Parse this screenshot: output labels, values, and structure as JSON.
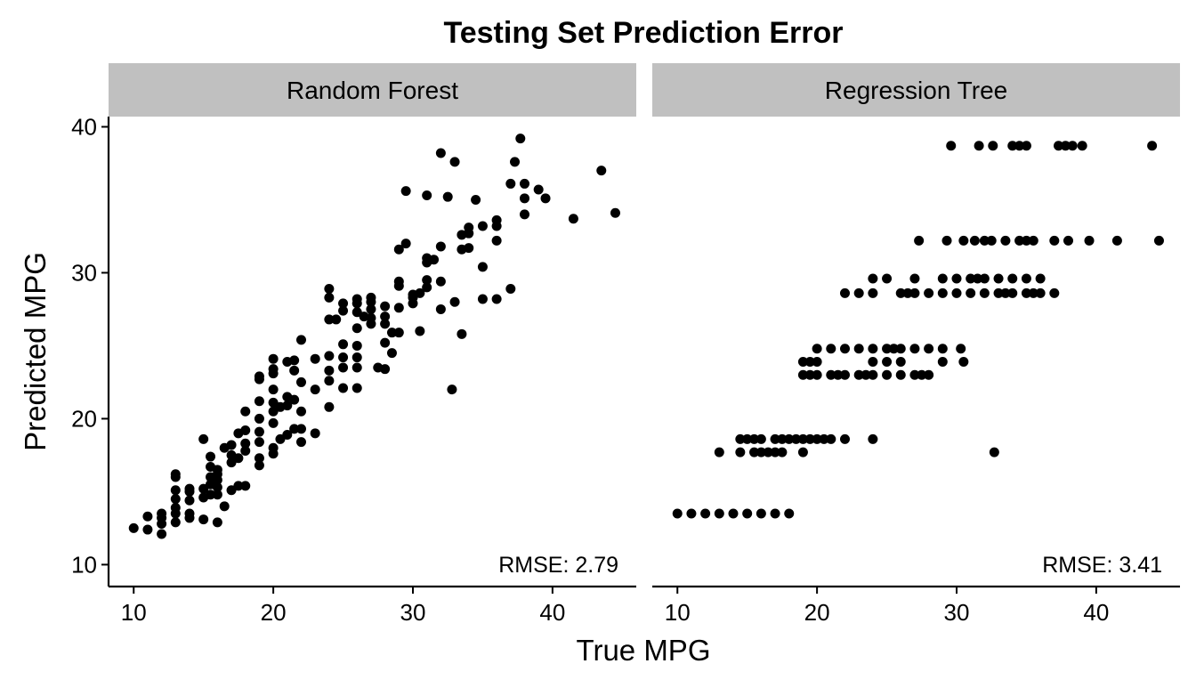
{
  "chart_data": {
    "type": "scatter",
    "title": "Testing Set Prediction Error",
    "xlabel": "True MPG",
    "ylabel": "Predicted MPG",
    "xlim": [
      8.2,
      46
    ],
    "ylim": [
      8.5,
      40.7
    ],
    "x_ticks": [
      "10",
      "20",
      "30",
      "40"
    ],
    "y_ticks": [
      "10",
      "20",
      "30",
      "40"
    ],
    "grid": false,
    "legend": "none",
    "point_color": "#000000",
    "strip_color": "#c0c0c0",
    "panels": [
      {
        "name": "Random Forest",
        "annotation": "RMSE: 2.79",
        "points": [
          [
            10,
            12.5
          ],
          [
            11,
            12.4
          ],
          [
            11,
            13.3
          ],
          [
            12,
            12.1
          ],
          [
            12,
            13.5
          ],
          [
            12,
            13.2
          ],
          [
            12,
            12.8
          ],
          [
            13,
            12.9
          ],
          [
            13,
            13.5
          ],
          [
            13,
            13.9
          ],
          [
            13,
            14.5
          ],
          [
            13,
            15.1
          ],
          [
            13,
            16.0
          ],
          [
            13,
            16.2
          ],
          [
            14,
            13.2
          ],
          [
            14,
            13.5
          ],
          [
            14,
            14.4
          ],
          [
            14,
            15.0
          ],
          [
            14,
            15.2
          ],
          [
            15,
            13.1
          ],
          [
            15,
            14.6
          ],
          [
            15,
            15.2
          ],
          [
            15,
            18.6
          ],
          [
            15.5,
            14.8
          ],
          [
            15.5,
            15.5
          ],
          [
            15.5,
            16.0
          ],
          [
            15.5,
            16.7
          ],
          [
            15.5,
            17.4
          ],
          [
            16,
            12.9
          ],
          [
            16,
            14.8
          ],
          [
            16,
            15.3
          ],
          [
            16,
            15.8
          ],
          [
            16,
            16.2
          ],
          [
            16,
            16.5
          ],
          [
            16.5,
            14.0
          ],
          [
            16.5,
            18.0
          ],
          [
            17,
            15.1
          ],
          [
            17,
            17.0
          ],
          [
            17,
            17.5
          ],
          [
            17,
            18.2
          ],
          [
            17.5,
            15.4
          ],
          [
            17.5,
            17.3
          ],
          [
            17.5,
            19.0
          ],
          [
            18,
            15.4
          ],
          [
            18,
            17.8
          ],
          [
            18,
            18.3
          ],
          [
            18,
            19.2
          ],
          [
            18,
            20.5
          ],
          [
            19,
            16.8
          ],
          [
            19,
            17.3
          ],
          [
            19,
            18.4
          ],
          [
            19,
            19.1
          ],
          [
            19,
            20.0
          ],
          [
            19,
            21.2
          ],
          [
            19,
            22.7
          ],
          [
            19,
            22.9
          ],
          [
            20,
            17.6
          ],
          [
            20,
            18.0
          ],
          [
            20,
            19.7
          ],
          [
            20,
            20.5
          ],
          [
            20,
            21.1
          ],
          [
            20,
            22.0
          ],
          [
            20,
            23.1
          ],
          [
            20,
            23.4
          ],
          [
            20,
            24.1
          ],
          [
            20.5,
            18.6
          ],
          [
            20.5,
            20.8
          ],
          [
            21,
            18.9
          ],
          [
            21,
            20.9
          ],
          [
            21,
            21.5
          ],
          [
            21,
            23.9
          ],
          [
            21.5,
            19.3
          ],
          [
            21.5,
            21.3
          ],
          [
            21.5,
            23.3
          ],
          [
            21.5,
            24.0
          ],
          [
            22,
            18.4
          ],
          [
            22,
            19.3
          ],
          [
            22,
            20.5
          ],
          [
            22,
            22.5
          ],
          [
            22,
            25.4
          ],
          [
            23,
            19.0
          ],
          [
            23,
            22.0
          ],
          [
            23,
            24.1
          ],
          [
            24,
            20.8
          ],
          [
            24,
            22.6
          ],
          [
            24,
            23.3
          ],
          [
            24,
            24.3
          ],
          [
            24,
            26.8
          ],
          [
            24,
            28.3
          ],
          [
            24,
            28.9
          ],
          [
            24.5,
            26.8
          ],
          [
            25,
            22.1
          ],
          [
            25,
            23.5
          ],
          [
            25,
            24.2
          ],
          [
            25,
            25.1
          ],
          [
            25,
            27.4
          ],
          [
            25,
            27.9
          ],
          [
            26,
            22.1
          ],
          [
            26,
            23.5
          ],
          [
            26,
            24.2
          ],
          [
            26,
            25.0
          ],
          [
            26,
            26.2
          ],
          [
            26,
            27.3
          ],
          [
            26,
            27.9
          ],
          [
            26,
            28.2
          ],
          [
            26.5,
            27.0
          ],
          [
            27,
            26.5
          ],
          [
            27,
            26.9
          ],
          [
            27,
            27.5
          ],
          [
            27,
            28.0
          ],
          [
            27,
            28.3
          ],
          [
            27.5,
            23.5
          ],
          [
            28,
            23.4
          ],
          [
            28,
            25.2
          ],
          [
            28,
            26.5
          ],
          [
            28,
            27.0
          ],
          [
            28,
            27.7
          ],
          [
            28.5,
            24.5
          ],
          [
            28.5,
            25.9
          ],
          [
            29,
            25.9
          ],
          [
            29,
            27.6
          ],
          [
            29,
            29.1
          ],
          [
            29,
            29.4
          ],
          [
            29,
            31.6
          ],
          [
            29.5,
            32.0
          ],
          [
            29.5,
            35.6
          ],
          [
            30,
            27.9
          ],
          [
            30,
            28.3
          ],
          [
            30,
            28.5
          ],
          [
            30.5,
            26.0
          ],
          [
            30.5,
            28.6
          ],
          [
            31,
            29.0
          ],
          [
            31,
            29.5
          ],
          [
            31,
            30.7
          ],
          [
            31,
            31.0
          ],
          [
            31,
            35.3
          ],
          [
            31.5,
            30.9
          ],
          [
            32,
            27.5
          ],
          [
            32,
            29.4
          ],
          [
            32,
            31.8
          ],
          [
            32,
            38.2
          ],
          [
            32.5,
            35.2
          ],
          [
            32.8,
            22.0
          ],
          [
            33,
            28.0
          ],
          [
            33,
            37.6
          ],
          [
            33.5,
            25.8
          ],
          [
            33.5,
            31.6
          ],
          [
            33.5,
            32.6
          ],
          [
            34,
            31.7
          ],
          [
            34,
            32.7
          ],
          [
            34,
            33.1
          ],
          [
            34.5,
            35.0
          ],
          [
            35,
            28.2
          ],
          [
            35,
            30.4
          ],
          [
            35,
            33.2
          ],
          [
            36,
            28.2
          ],
          [
            36,
            32.2
          ],
          [
            36,
            33.2
          ],
          [
            36,
            33.6
          ],
          [
            37,
            28.9
          ],
          [
            37,
            36.1
          ],
          [
            37.3,
            37.6
          ],
          [
            37.7,
            39.2
          ],
          [
            38,
            34.0
          ],
          [
            38,
            35.1
          ],
          [
            38,
            36.1
          ],
          [
            39,
            35.7
          ],
          [
            39.5,
            35.1
          ],
          [
            41.5,
            33.7
          ],
          [
            43.5,
            37.0
          ],
          [
            44.5,
            34.1
          ]
        ]
      },
      {
        "name": "Regression Tree",
        "annotation": "RMSE: 3.41",
        "points": [
          [
            10,
            13.5
          ],
          [
            11,
            13.5
          ],
          [
            12,
            13.5
          ],
          [
            13,
            13.5
          ],
          [
            14,
            13.5
          ],
          [
            15,
            13.5
          ],
          [
            16,
            13.5
          ],
          [
            17,
            13.5
          ],
          [
            18,
            13.5
          ],
          [
            13,
            17.7
          ],
          [
            14.5,
            17.7
          ],
          [
            15.5,
            17.7
          ],
          [
            16,
            17.7
          ],
          [
            16.5,
            17.7
          ],
          [
            17,
            17.7
          ],
          [
            17.5,
            17.7
          ],
          [
            19,
            17.7
          ],
          [
            32.7,
            17.7
          ],
          [
            14.5,
            18.6
          ],
          [
            15,
            18.6
          ],
          [
            15.5,
            18.6
          ],
          [
            16,
            18.6
          ],
          [
            17,
            18.6
          ],
          [
            17.5,
            18.6
          ],
          [
            18,
            18.6
          ],
          [
            18.5,
            18.6
          ],
          [
            19,
            18.6
          ],
          [
            19.5,
            18.6
          ],
          [
            20,
            18.6
          ],
          [
            20.5,
            18.6
          ],
          [
            21,
            18.6
          ],
          [
            22,
            18.6
          ],
          [
            24,
            18.6
          ],
          [
            19,
            23.0
          ],
          [
            19.5,
            23.0
          ],
          [
            20,
            23.0
          ],
          [
            21,
            23.0
          ],
          [
            21.5,
            23.0
          ],
          [
            22,
            23.0
          ],
          [
            23,
            23.0
          ],
          [
            23.5,
            23.0
          ],
          [
            24,
            23.0
          ],
          [
            25,
            23.0
          ],
          [
            26,
            23.0
          ],
          [
            27,
            23.0
          ],
          [
            27.5,
            23.0
          ],
          [
            28,
            23.0
          ],
          [
            19,
            23.9
          ],
          [
            19.5,
            23.9
          ],
          [
            20,
            23.9
          ],
          [
            24,
            23.9
          ],
          [
            25,
            23.9
          ],
          [
            26,
            23.9
          ],
          [
            29,
            23.9
          ],
          [
            30.5,
            23.9
          ],
          [
            20,
            24.8
          ],
          [
            21,
            24.8
          ],
          [
            22,
            24.8
          ],
          [
            23,
            24.8
          ],
          [
            24,
            24.8
          ],
          [
            25,
            24.8
          ],
          [
            25.5,
            24.8
          ],
          [
            26,
            24.8
          ],
          [
            27,
            24.8
          ],
          [
            28,
            24.8
          ],
          [
            29,
            24.8
          ],
          [
            30.3,
            24.8
          ],
          [
            22,
            28.6
          ],
          [
            23,
            28.6
          ],
          [
            24,
            28.6
          ],
          [
            26,
            28.6
          ],
          [
            26.5,
            28.6
          ],
          [
            27,
            28.6
          ],
          [
            28,
            28.6
          ],
          [
            29,
            28.6
          ],
          [
            30,
            28.6
          ],
          [
            31,
            28.6
          ],
          [
            32,
            28.6
          ],
          [
            33,
            28.6
          ],
          [
            33.5,
            28.6
          ],
          [
            34,
            28.6
          ],
          [
            35,
            28.6
          ],
          [
            35.5,
            28.6
          ],
          [
            36,
            28.6
          ],
          [
            37,
            28.6
          ],
          [
            24,
            29.6
          ],
          [
            25,
            29.6
          ],
          [
            27,
            29.6
          ],
          [
            29,
            29.6
          ],
          [
            30,
            29.6
          ],
          [
            31,
            29.6
          ],
          [
            31.5,
            29.6
          ],
          [
            32,
            29.6
          ],
          [
            33,
            29.6
          ],
          [
            34,
            29.6
          ],
          [
            35,
            29.6
          ],
          [
            36,
            29.6
          ],
          [
            27.3,
            32.2
          ],
          [
            29.3,
            32.2
          ],
          [
            30.5,
            32.2
          ],
          [
            31.3,
            32.2
          ],
          [
            32,
            32.2
          ],
          [
            32.5,
            32.2
          ],
          [
            33.5,
            32.2
          ],
          [
            34.5,
            32.2
          ],
          [
            35,
            32.2
          ],
          [
            35.5,
            32.2
          ],
          [
            37,
            32.2
          ],
          [
            38,
            32.2
          ],
          [
            39.5,
            32.2
          ],
          [
            41.5,
            32.2
          ],
          [
            44.5,
            32.2
          ],
          [
            29.6,
            38.7
          ],
          [
            31.6,
            38.7
          ],
          [
            32.6,
            38.7
          ],
          [
            34,
            38.7
          ],
          [
            34.5,
            38.7
          ],
          [
            35,
            38.7
          ],
          [
            37.3,
            38.7
          ],
          [
            37.8,
            38.7
          ],
          [
            38.3,
            38.7
          ],
          [
            39,
            38.7
          ],
          [
            44,
            38.7
          ]
        ]
      }
    ]
  }
}
